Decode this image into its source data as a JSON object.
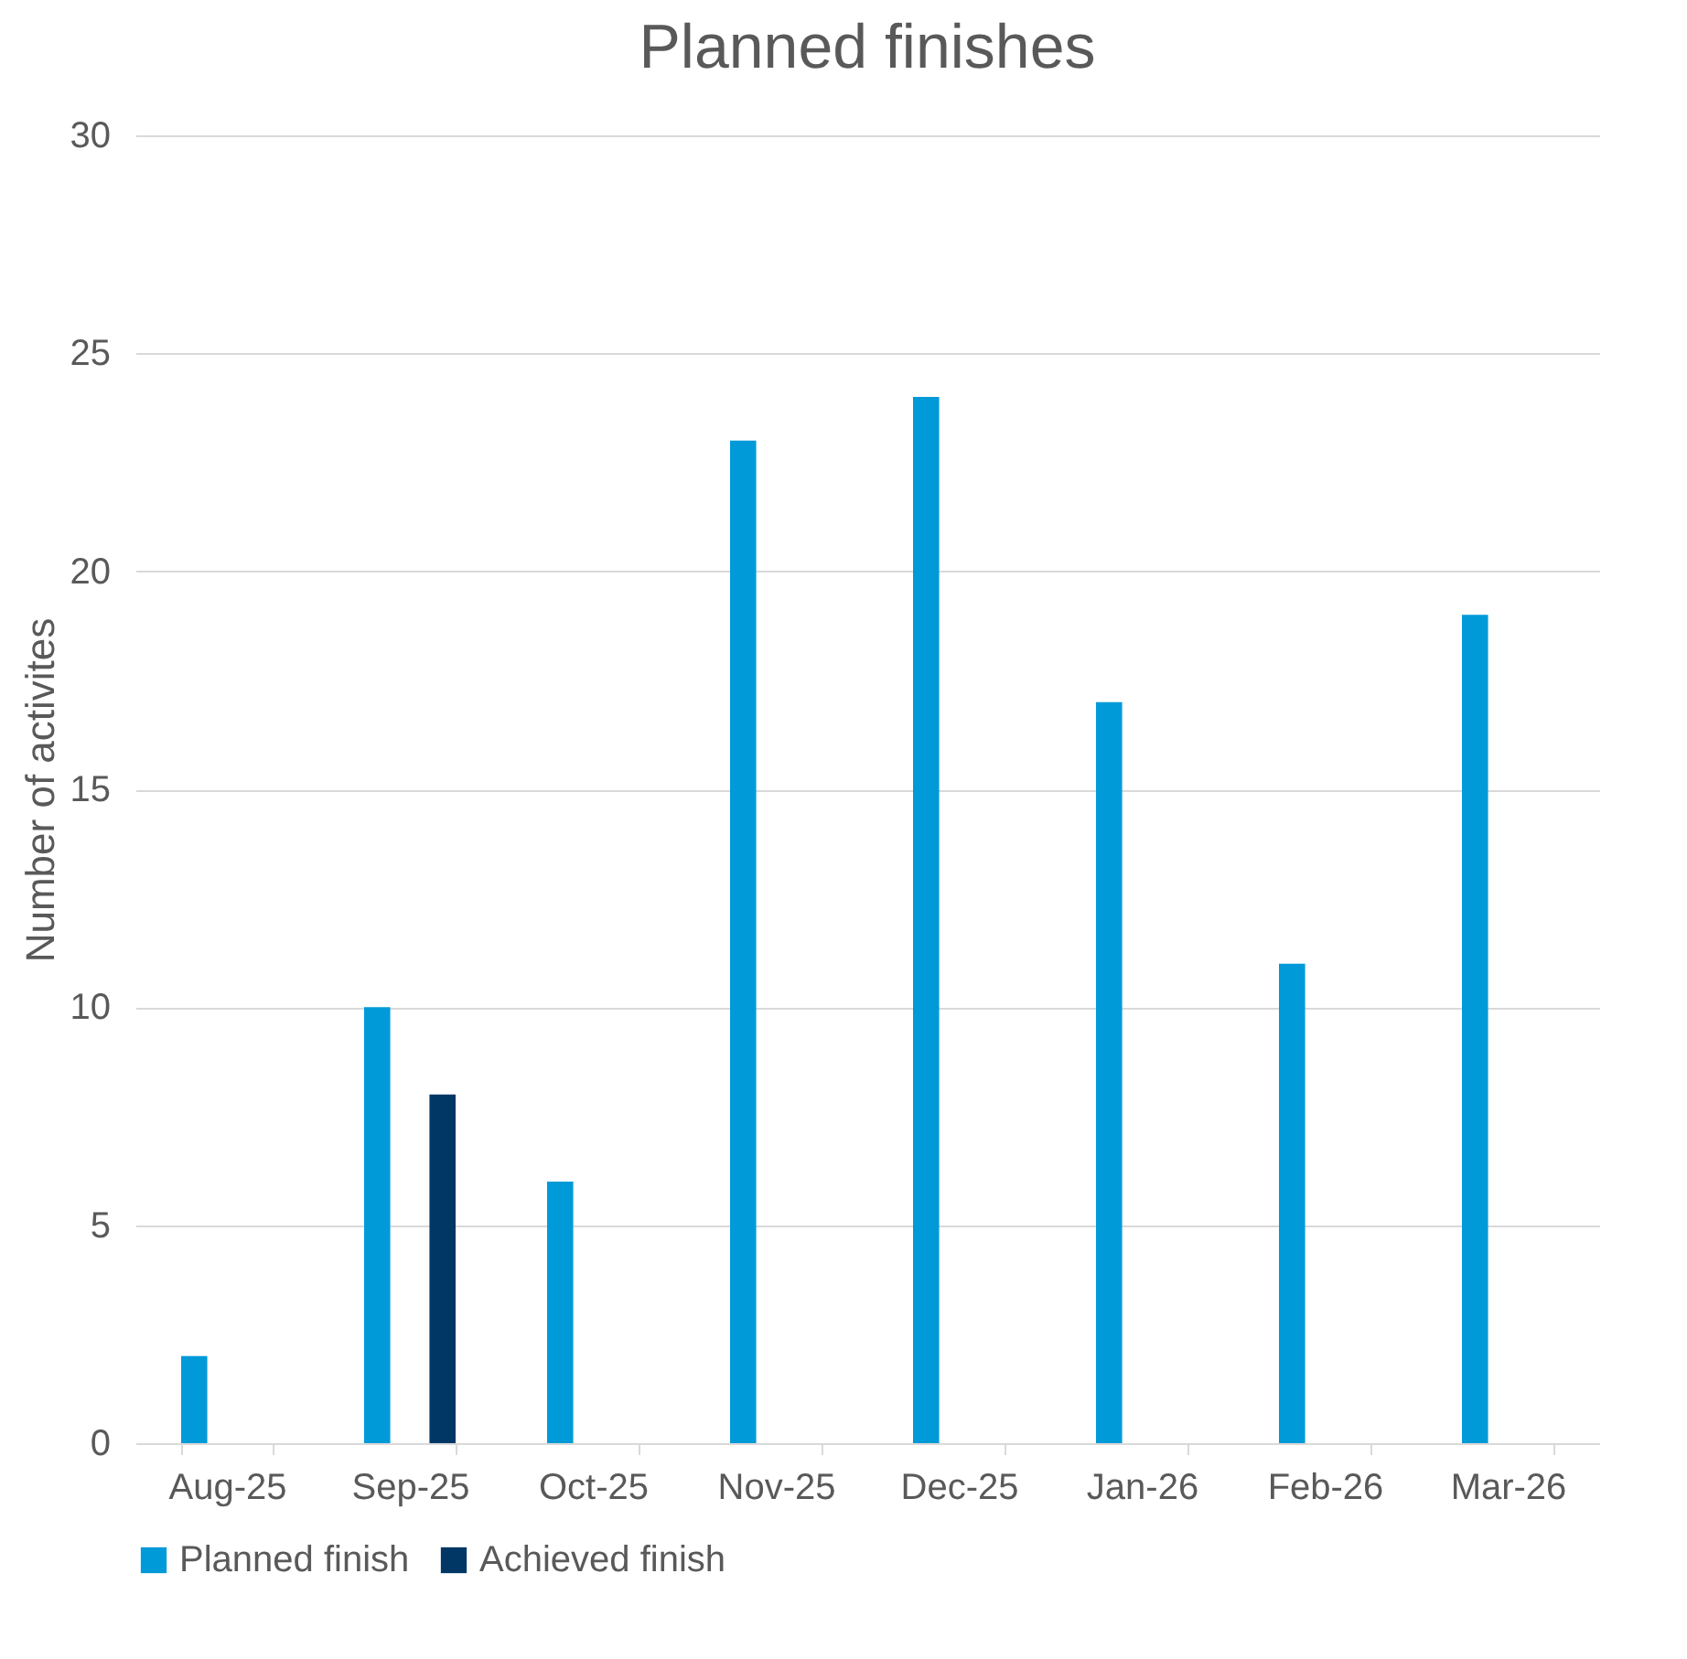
{
  "chart_data": {
    "type": "bar",
    "title": "Planned finishes",
    "ylabel": "Number of activites",
    "categories": [
      "Aug-25",
      "Sep-25",
      "Oct-25",
      "Nov-25",
      "Dec-25",
      "Jan-26",
      "Feb-26",
      "Mar-26"
    ],
    "series": [
      {
        "name": "Planned finish",
        "color": "#009ad9",
        "values": [
          2,
          10,
          6,
          23,
          24,
          17,
          11,
          19
        ]
      },
      {
        "name": "Achieved finish",
        "color": "#003764",
        "values": [
          null,
          8,
          null,
          null,
          null,
          null,
          null,
          null
        ]
      }
    ],
    "ylim": [
      0,
      30
    ],
    "yticks": [
      0,
      5,
      10,
      15,
      20,
      25,
      30
    ],
    "grid": "y",
    "legend": "bottom"
  }
}
